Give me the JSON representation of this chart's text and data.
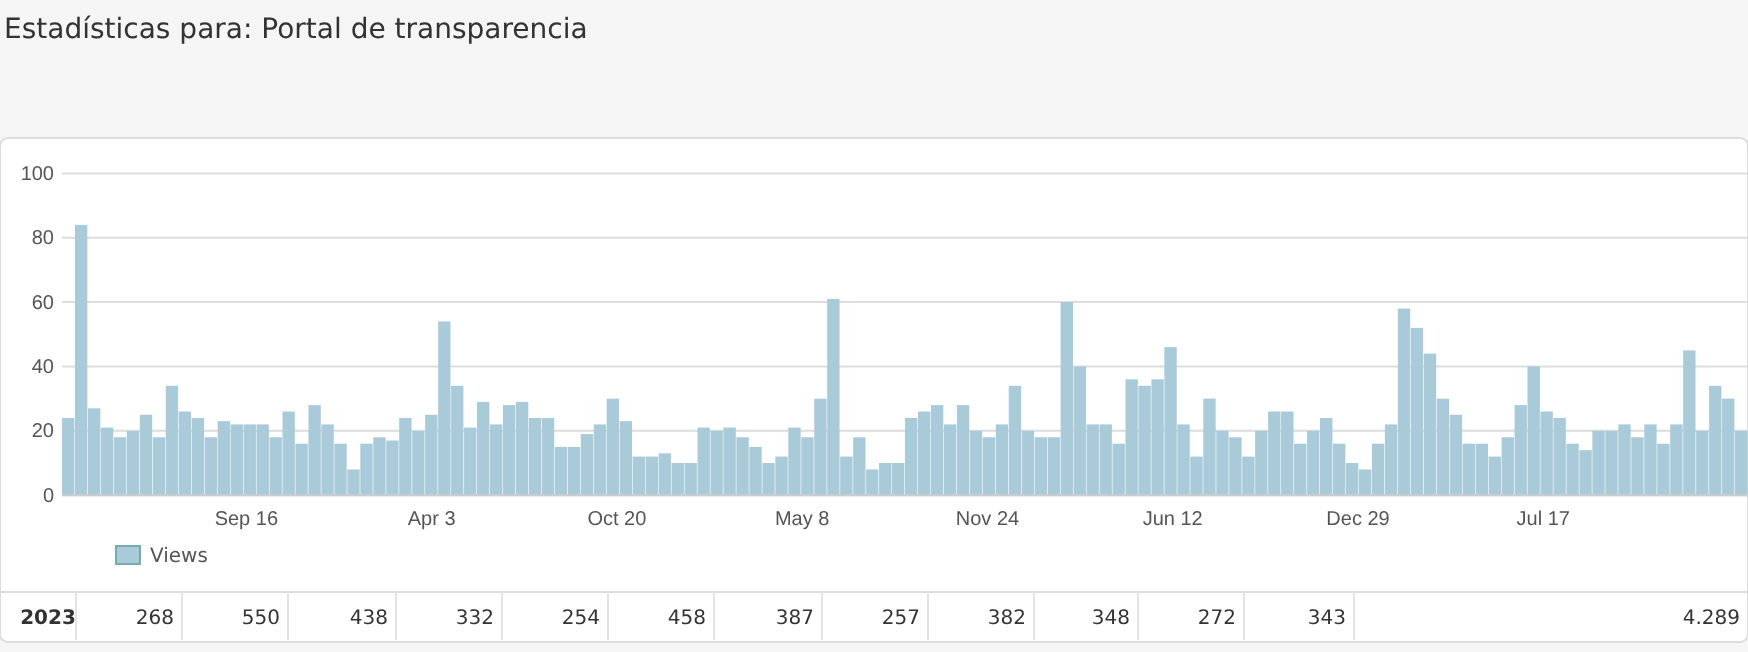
{
  "chart_data": {
    "type": "bar",
    "title": "Estadísticas para: Portal de transparencia",
    "x": [
      "2019-03-01",
      "2019-03-15",
      "2019-03-29",
      "2019-04-12",
      "2019-04-26",
      "2019-05-10",
      "2019-05-24",
      "2019-06-07",
      "2019-06-21",
      "2019-07-05",
      "2019-07-19",
      "2019-08-02",
      "2019-08-16",
      "2019-08-30",
      "2019-09-13",
      "2019-09-27",
      "2019-10-11",
      "2019-10-25",
      "2019-11-08",
      "2019-11-22",
      "2019-12-06",
      "2019-12-20",
      "2020-01-03",
      "2020-01-17",
      "2020-01-31",
      "2020-02-14",
      "2020-02-28",
      "2020-03-13",
      "2020-03-27",
      "2020-04-10",
      "2020-04-24",
      "2020-05-08",
      "2020-05-22",
      "2020-06-05",
      "2020-06-19",
      "2020-07-03",
      "2020-07-17",
      "2020-07-31",
      "2020-08-14",
      "2020-08-28",
      "2020-09-11",
      "2020-09-25",
      "2020-10-09",
      "2020-10-23",
      "2020-11-06",
      "2020-11-20",
      "2020-12-04",
      "2020-12-18",
      "2021-01-01",
      "2021-01-15",
      "2021-01-29",
      "2021-02-12",
      "2021-02-26",
      "2021-03-12",
      "2021-03-26",
      "2021-04-09",
      "2021-04-23",
      "2021-05-07",
      "2021-05-21",
      "2021-06-04",
      "2021-06-18",
      "2021-07-02",
      "2021-07-16",
      "2021-07-30",
      "2021-08-13",
      "2021-08-27",
      "2021-09-10",
      "2021-09-24",
      "2021-10-08",
      "2021-10-22",
      "2021-11-05",
      "2021-11-19",
      "2021-12-03",
      "2021-12-17",
      "2021-12-31",
      "2022-01-14",
      "2022-01-28",
      "2022-02-11",
      "2022-02-25",
      "2022-03-11",
      "2022-03-25",
      "2022-04-08",
      "2022-04-22",
      "2022-05-06",
      "2022-05-20",
      "2022-06-03",
      "2022-06-17",
      "2022-07-01",
      "2022-07-15",
      "2022-07-29",
      "2022-08-12",
      "2022-08-26",
      "2022-09-09",
      "2022-09-23",
      "2022-10-07",
      "2022-10-21",
      "2022-11-04",
      "2022-11-18",
      "2022-12-02",
      "2022-12-16",
      "2022-12-30",
      "2023-01-13",
      "2023-01-27",
      "2023-02-10",
      "2023-02-24",
      "2023-03-10",
      "2023-03-24",
      "2023-04-07",
      "2023-04-21",
      "2023-05-05",
      "2023-05-19",
      "2023-06-02",
      "2023-06-16",
      "2023-06-30",
      "2023-07-14",
      "2023-07-28",
      "2023-08-11",
      "2023-08-25",
      "2023-09-08",
      "2023-09-22",
      "2023-10-06",
      "2023-10-20",
      "2023-11-03",
      "2023-11-17",
      "2023-12-01",
      "2023-12-15",
      "2023-12-29",
      "2024-01-12",
      "2024-01-26",
      "2024-02-09"
    ],
    "series": [
      {
        "name": "Views",
        "color": "#a9cbd9",
        "values": [
          24,
          84,
          27,
          21,
          18,
          20,
          25,
          18,
          34,
          26,
          24,
          18,
          23,
          22,
          22,
          22,
          18,
          26,
          16,
          28,
          22,
          16,
          8,
          16,
          18,
          17,
          24,
          20,
          25,
          54,
          34,
          21,
          29,
          22,
          28,
          29,
          24,
          24,
          15,
          15,
          19,
          22,
          30,
          23,
          12,
          12,
          13,
          10,
          10,
          21,
          20,
          21,
          18,
          15,
          10,
          12,
          21,
          18,
          30,
          61,
          12,
          18,
          8,
          10,
          10,
          24,
          26,
          28,
          22,
          28,
          20,
          18,
          22,
          34,
          20,
          18,
          18,
          60,
          40,
          22,
          22,
          16,
          36,
          34,
          36,
          46,
          22,
          12,
          30,
          20,
          18,
          12,
          20,
          26,
          26,
          16,
          20,
          24,
          16,
          10,
          8,
          16,
          22,
          58,
          52,
          44,
          30,
          25,
          16,
          16,
          12,
          18,
          28,
          40,
          26,
          24,
          16,
          14,
          20,
          20,
          22,
          18,
          22,
          16,
          22,
          45,
          20,
          34,
          30,
          20
        ]
      }
    ],
    "xlim": [
      "2019-03-01",
      "2024-02-23"
    ],
    "xticks": [
      {
        "value": "2019-09-16",
        "label": "Sep 16"
      },
      {
        "value": "2020-04-03",
        "label": "Apr 3"
      },
      {
        "value": "2020-10-20",
        "label": "Oct 20"
      },
      {
        "value": "2021-05-08",
        "label": "May 8"
      },
      {
        "value": "2021-11-24",
        "label": "Nov 24"
      },
      {
        "value": "2022-06-12",
        "label": "Jun 12"
      },
      {
        "value": "2022-12-29",
        "label": "Dec 29"
      },
      {
        "value": "2023-07-17",
        "label": "Jul 17"
      }
    ],
    "ylim": [
      0,
      100
    ],
    "yticks": [
      0,
      20,
      40,
      60,
      80,
      100
    ],
    "grid": "y",
    "legend": "bottom left",
    "annotations": [
      "2023",
      "268",
      "550",
      "438",
      "332",
      "254",
      "458",
      "387",
      "257",
      "382",
      "348",
      "272",
      "343",
      "4.289"
    ]
  }
}
